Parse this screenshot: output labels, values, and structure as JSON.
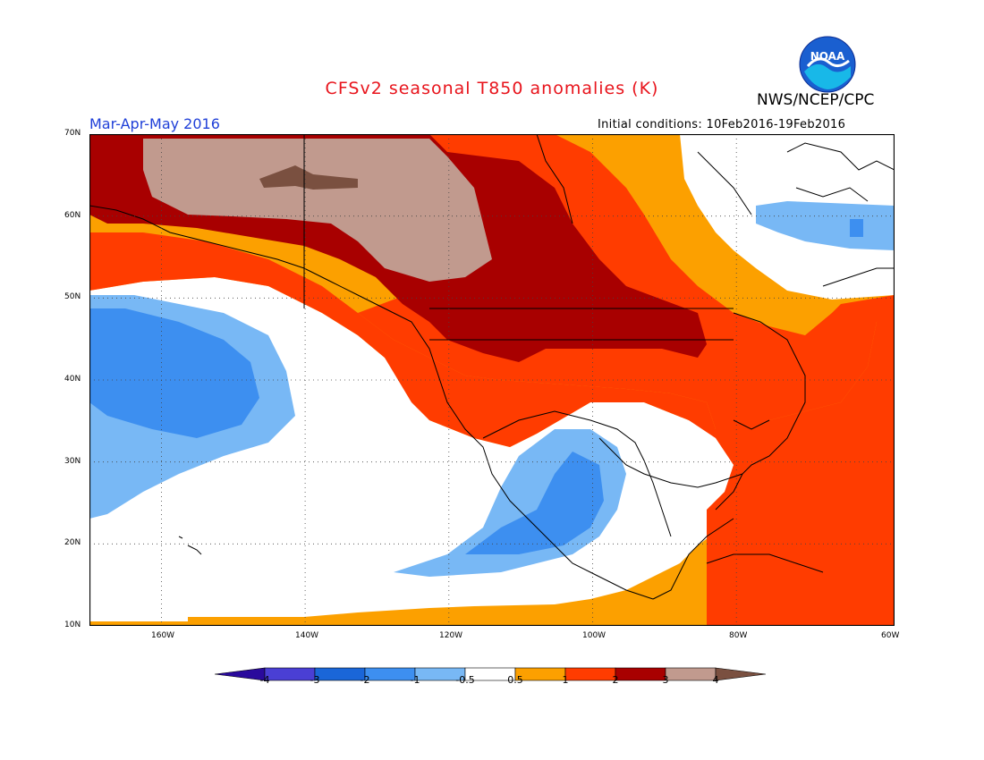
{
  "title": "CFSv2 seasonal T850 anomalies (K)",
  "agency": "NWS/NCEP/CPC",
  "logo_text": "NOAA",
  "period": "Mar-Apr-May 2016",
  "initial_conditions": "Initial conditions: 10Feb2016-19Feb2016",
  "map": {
    "lon_range": [
      -172,
      -60
    ],
    "lat_range": [
      10,
      70
    ],
    "lat_ticks": [
      "10N",
      "20N",
      "30N",
      "40N",
      "50N",
      "60N",
      "70N"
    ],
    "lon_ticks": [
      "160W",
      "140W",
      "120W",
      "100W",
      "80W",
      "60W"
    ],
    "grid": "dotted"
  },
  "colorbar": {
    "labels": [
      "-4",
      "-3",
      "-2",
      "-1",
      "-0.5",
      "0.5",
      "1",
      "2",
      "3",
      "4"
    ],
    "colors": [
      "#2a0a9c",
      "#4a3fd4",
      "#1a66d8",
      "#3d8ff0",
      "#78b8f5",
      "#ffffff",
      "#fca000",
      "#ff3c00",
      "#a80000",
      "#c19a8e",
      "#7a5040"
    ]
  },
  "colors": {
    "title": "#e8141c",
    "period": "#2040d8",
    "land_border": "#000000"
  }
}
